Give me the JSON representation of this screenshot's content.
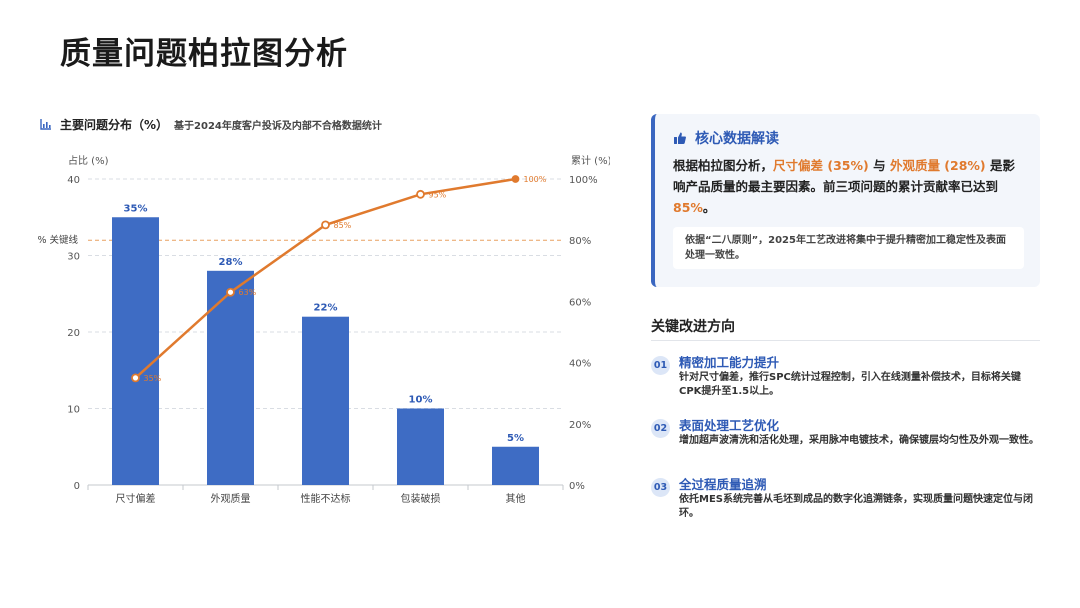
{
  "page": {
    "title": "质量问题柏拉图分析"
  },
  "chart_header": {
    "title": "主要问题分布（%）",
    "subtitle": "基于2024年度客户投诉及内部不合格数据统计"
  },
  "chart_data": {
    "type": "bar",
    "categories": [
      "尺寸偏差",
      "外观质量",
      "性能不达标",
      "包装破损",
      "其他"
    ],
    "series": [
      {
        "values": [
          35,
          28,
          22,
          10,
          5
        ],
        "labels": [
          "35%",
          "28%",
          "22%",
          "10%",
          "5%"
        ],
        "color": "#3e6cc4"
      },
      {
        "values": [
          35,
          63,
          85,
          95,
          100
        ],
        "labels": [
          "35%",
          "63%",
          "85%",
          "95%",
          "100%"
        ],
        "color": "#e07a2e",
        "axis": "right",
        "type": "line"
      }
    ],
    "ylabel_left": "占比 (%)",
    "ylabel_right": "累计 (%)",
    "ylim_left": [
      0,
      40
    ],
    "yticks_left": [
      0,
      10,
      20,
      30,
      40
    ],
    "ylim_right": [
      0,
      100
    ],
    "yticks_right": [
      "0%",
      "20%",
      "40%",
      "60%",
      "80%",
      "100%"
    ],
    "reference_line": {
      "value": 80,
      "axis": "right",
      "label": "% 关键线",
      "color": "#e8a060"
    },
    "grid": true
  },
  "insight": {
    "title": "核心数据解读",
    "text_1": "根据柏拉图分析，",
    "hl_1": "尺寸偏差 (35%)",
    "text_2": " 与 ",
    "hl_2": "外观质量 (28%)",
    "text_3": " 是影响产品质量的最主要因素。前三项问题的累计贡献率已达到 ",
    "hl_3": "85%",
    "text_4": "。",
    "note": "依据“二八原则”，2025年工艺改进将集中于提升精密加工稳定性及表面处理一致性。"
  },
  "improvement": {
    "title": "关键改进方向",
    "items": [
      {
        "num": "01",
        "title": "精密加工能力提升",
        "desc": "针对尺寸偏差，推行SPC统计过程控制，引入在线测量补偿技术，目标将关键CPK提升至1.5以上。"
      },
      {
        "num": "02",
        "title": "表面处理工艺优化",
        "desc": "增加超声波清洗和活化处理，采用脉冲电镀技术，确保镀层均匀性及外观一致性。"
      },
      {
        "num": "03",
        "title": "全过程质量追溯",
        "desc": "依托MES系统完善从毛坯到成品的数字化追溯链条，实现质量问题快速定位与闭环。"
      }
    ]
  },
  "colors": {
    "accent": "#2e5ab5",
    "bar": "#3e6cc4",
    "line": "#e07a2e",
    "highlight": "#e07a2e"
  }
}
